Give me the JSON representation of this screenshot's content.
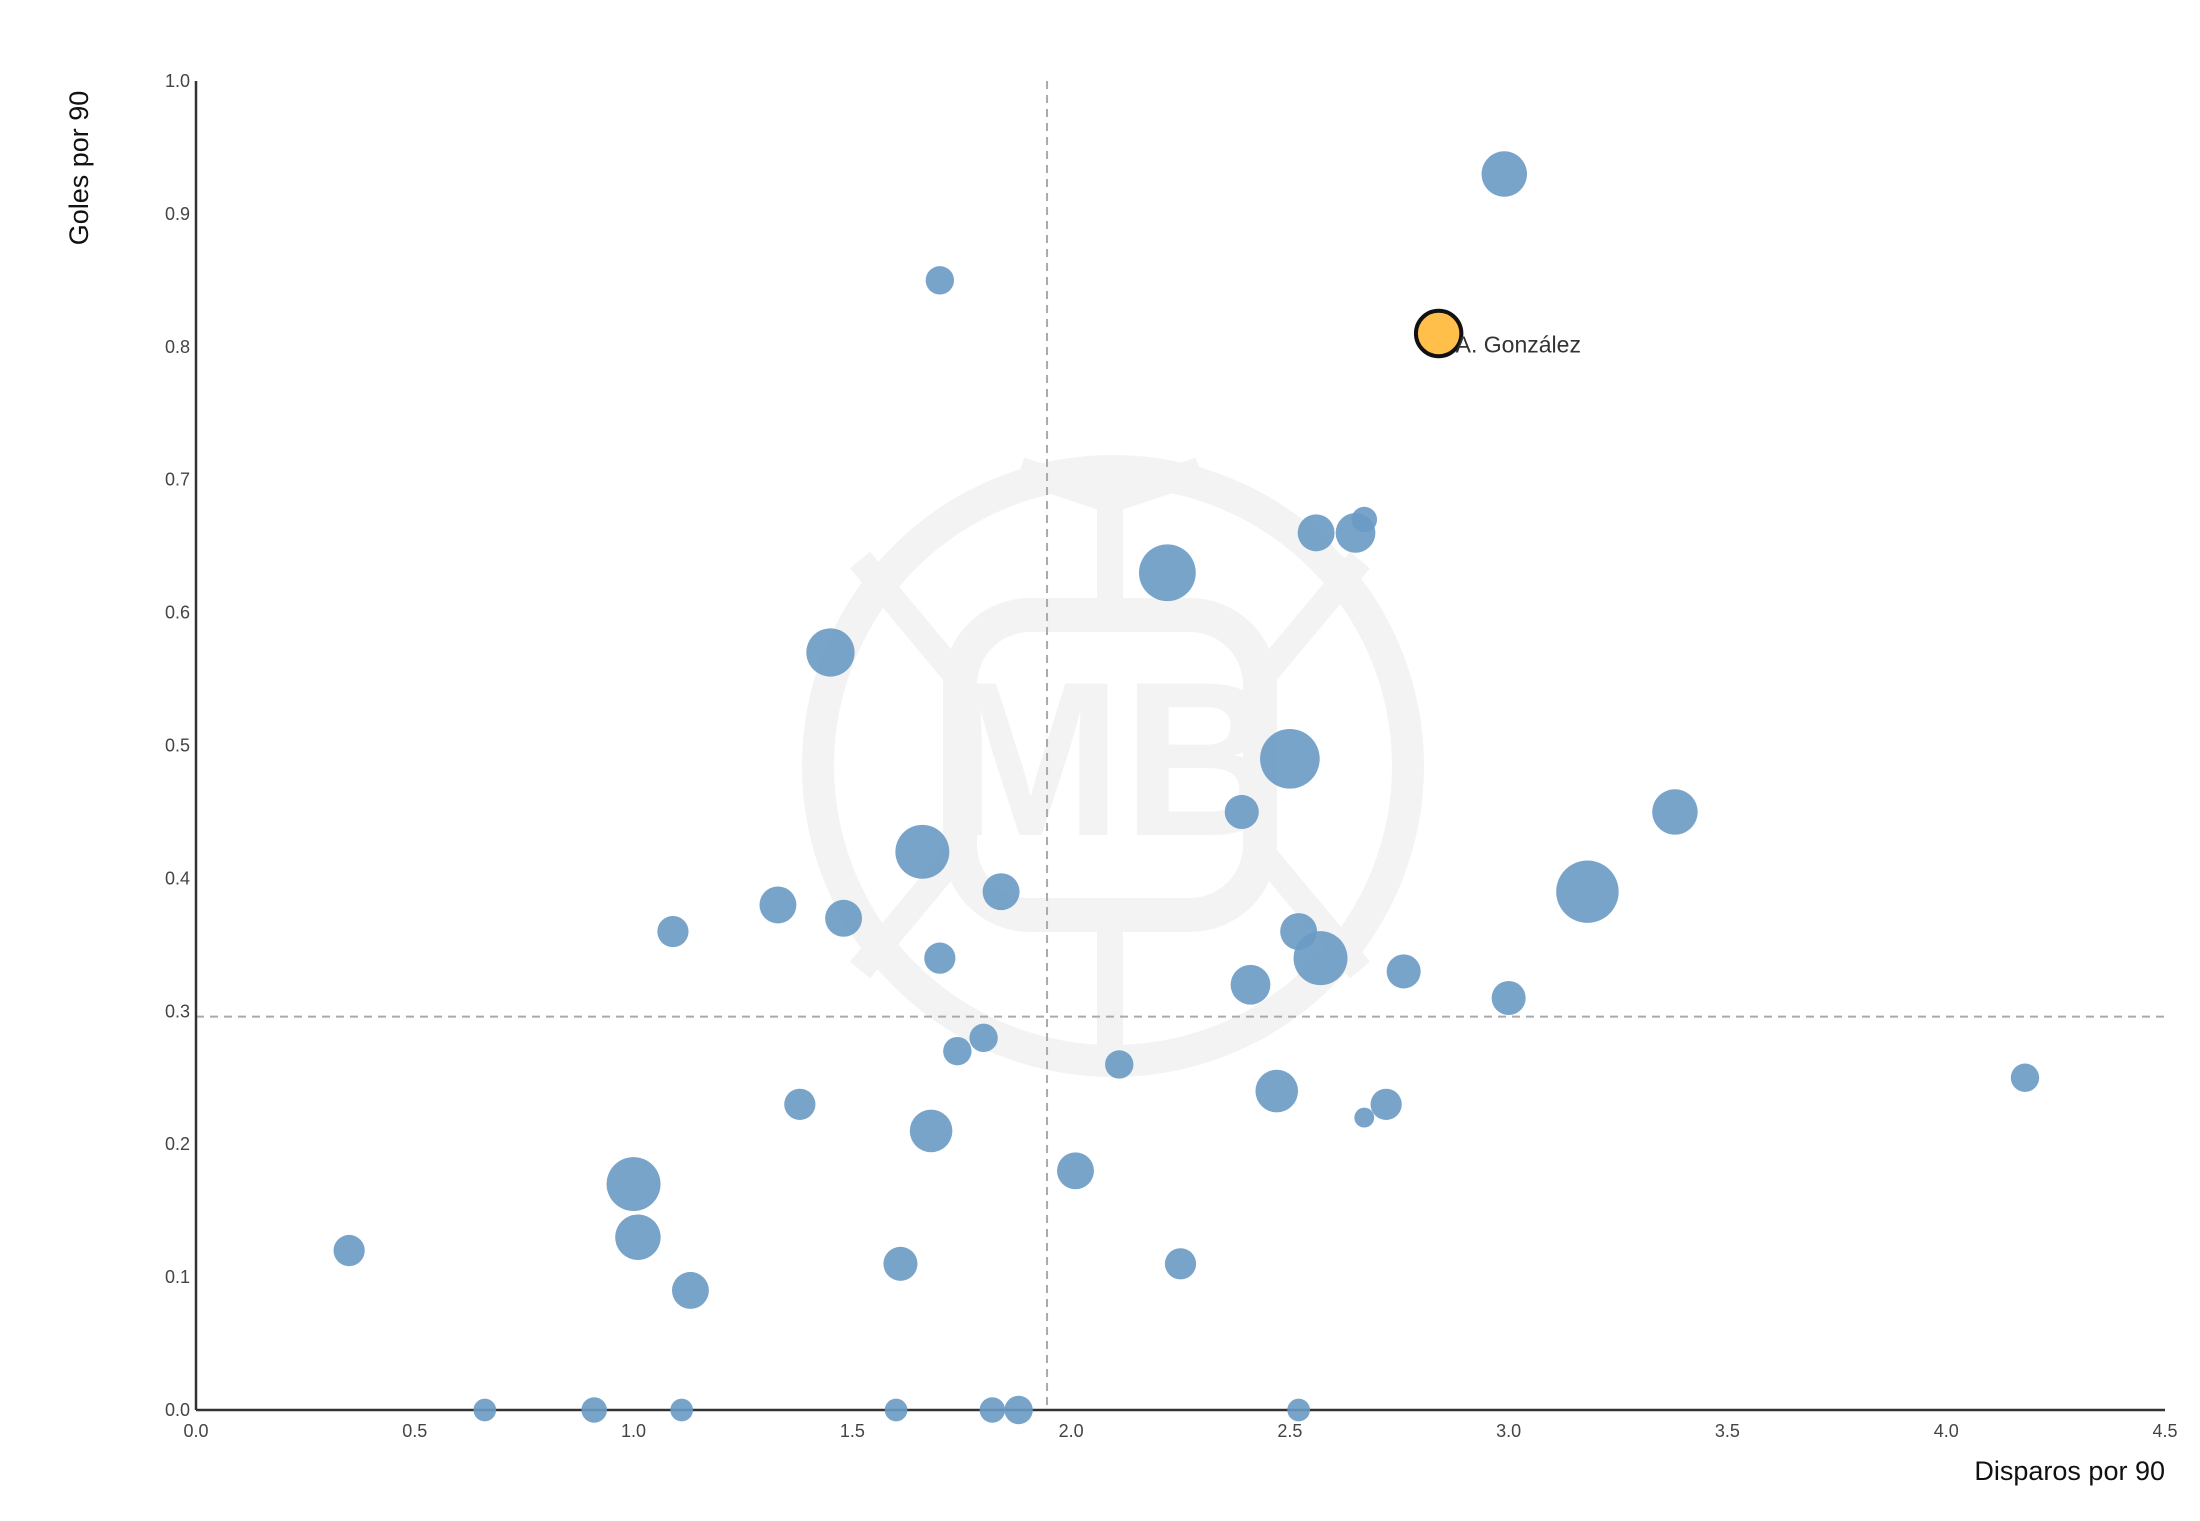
{
  "chart_data": {
    "type": "scatter",
    "title": "",
    "xlabel": "Disparos por 90",
    "ylabel": "Goles por 90",
    "xlim": [
      0,
      4.5
    ],
    "ylim": [
      0,
      1.0
    ],
    "xticks": [
      "0.0",
      "0.5",
      "1.0",
      "1.5",
      "2.0",
      "2.5",
      "3.0",
      "3.5",
      "4.0",
      "4.5"
    ],
    "yticks": [
      "0.0",
      "0.1",
      "0.2",
      "0.3",
      "0.4",
      "0.5",
      "0.6",
      "0.7",
      "0.8",
      "0.9",
      "1.0"
    ],
    "grid": false,
    "reference_lines": {
      "x_mean": 1.945,
      "y_mean": 0.296
    },
    "colors": {
      "points": "#6a9ac4",
      "highlight": "#ffbf4a",
      "reference": "#aaaaaa"
    },
    "watermark": "MB",
    "highlight": {
      "label": "A. González",
      "x": 2.84,
      "y": 0.81,
      "size": 16
    },
    "points": [
      {
        "x": 2.99,
        "y": 0.93,
        "size": 16
      },
      {
        "x": 1.7,
        "y": 0.85,
        "size": 10
      },
      {
        "x": 2.56,
        "y": 0.66,
        "size": 13
      },
      {
        "x": 2.65,
        "y": 0.66,
        "size": 14
      },
      {
        "x": 2.67,
        "y": 0.67,
        "size": 9
      },
      {
        "x": 2.22,
        "y": 0.63,
        "size": 20
      },
      {
        "x": 1.45,
        "y": 0.57,
        "size": 17
      },
      {
        "x": 2.5,
        "y": 0.49,
        "size": 21
      },
      {
        "x": 2.39,
        "y": 0.45,
        "size": 12
      },
      {
        "x": 3.38,
        "y": 0.45,
        "size": 16
      },
      {
        "x": 1.66,
        "y": 0.42,
        "size": 19
      },
      {
        "x": 3.18,
        "y": 0.39,
        "size": 22
      },
      {
        "x": 1.84,
        "y": 0.39,
        "size": 13
      },
      {
        "x": 1.33,
        "y": 0.38,
        "size": 13
      },
      {
        "x": 1.48,
        "y": 0.37,
        "size": 13
      },
      {
        "x": 1.09,
        "y": 0.36,
        "size": 11
      },
      {
        "x": 2.52,
        "y": 0.36,
        "size": 13
      },
      {
        "x": 1.7,
        "y": 0.34,
        "size": 11
      },
      {
        "x": 2.57,
        "y": 0.34,
        "size": 19
      },
      {
        "x": 2.76,
        "y": 0.33,
        "size": 12
      },
      {
        "x": 2.41,
        "y": 0.32,
        "size": 14
      },
      {
        "x": 3.0,
        "y": 0.31,
        "size": 12
      },
      {
        "x": 1.8,
        "y": 0.28,
        "size": 10
      },
      {
        "x": 1.74,
        "y": 0.27,
        "size": 10
      },
      {
        "x": 2.11,
        "y": 0.26,
        "size": 10
      },
      {
        "x": 4.18,
        "y": 0.25,
        "size": 10
      },
      {
        "x": 2.47,
        "y": 0.24,
        "size": 15
      },
      {
        "x": 1.38,
        "y": 0.23,
        "size": 11
      },
      {
        "x": 2.72,
        "y": 0.23,
        "size": 11
      },
      {
        "x": 2.67,
        "y": 0.22,
        "size": 7
      },
      {
        "x": 1.68,
        "y": 0.21,
        "size": 15
      },
      {
        "x": 2.01,
        "y": 0.18,
        "size": 13
      },
      {
        "x": 1.0,
        "y": 0.17,
        "size": 19
      },
      {
        "x": 0.35,
        "y": 0.12,
        "size": 11
      },
      {
        "x": 1.01,
        "y": 0.13,
        "size": 16
      },
      {
        "x": 1.61,
        "y": 0.11,
        "size": 12
      },
      {
        "x": 2.25,
        "y": 0.11,
        "size": 11
      },
      {
        "x": 1.13,
        "y": 0.09,
        "size": 13
      },
      {
        "x": 0.66,
        "y": 0.0,
        "size": 8
      },
      {
        "x": 0.91,
        "y": 0.0,
        "size": 9
      },
      {
        "x": 1.11,
        "y": 0.0,
        "size": 8
      },
      {
        "x": 1.6,
        "y": 0.0,
        "size": 8
      },
      {
        "x": 1.82,
        "y": 0.0,
        "size": 9
      },
      {
        "x": 1.88,
        "y": 0.0,
        "size": 10
      },
      {
        "x": 2.52,
        "y": 0.0,
        "size": 8
      }
    ]
  }
}
